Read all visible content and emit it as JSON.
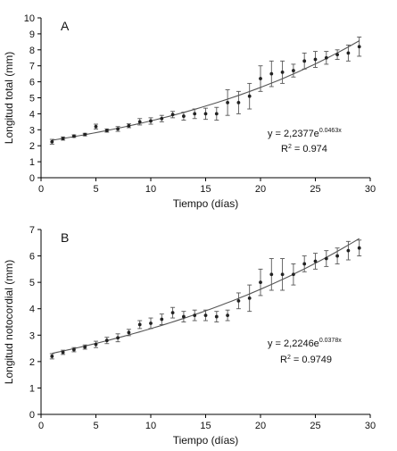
{
  "chart_data": [
    {
      "type": "scatter",
      "panel": "A",
      "xlabel": "Tiempo (días)",
      "ylabel": "Longitud total (mm)",
      "xlim": [
        0,
        30
      ],
      "ylim": [
        0,
        10
      ],
      "xticks": [
        0,
        5,
        10,
        15,
        20,
        25,
        30
      ],
      "yticks": [
        0,
        1,
        2,
        3,
        4,
        5,
        6,
        7,
        8,
        9,
        10
      ],
      "equation": {
        "prefix": "y = 2,2377e",
        "exponent": "0.0463x",
        "r2_label": "R",
        "r2_sup": "2",
        "r2_value": " = 0.974"
      },
      "fit": {
        "a": 2.2377,
        "b": 0.0463
      },
      "points": [
        {
          "x": 1,
          "y": 2.25,
          "err": 0.15
        },
        {
          "x": 2,
          "y": 2.45,
          "err": 0.1
        },
        {
          "x": 3,
          "y": 2.6,
          "err": 0.08
        },
        {
          "x": 4,
          "y": 2.7,
          "err": 0.08
        },
        {
          "x": 5,
          "y": 3.2,
          "err": 0.15
        },
        {
          "x": 6,
          "y": 2.95,
          "err": 0.1
        },
        {
          "x": 7,
          "y": 3.05,
          "err": 0.15
        },
        {
          "x": 8,
          "y": 3.25,
          "err": 0.12
        },
        {
          "x": 9,
          "y": 3.5,
          "err": 0.2
        },
        {
          "x": 10,
          "y": 3.55,
          "err": 0.2
        },
        {
          "x": 11,
          "y": 3.7,
          "err": 0.2
        },
        {
          "x": 12,
          "y": 3.95,
          "err": 0.2
        },
        {
          "x": 13,
          "y": 3.85,
          "err": 0.25
        },
        {
          "x": 14,
          "y": 4.0,
          "err": 0.3
        },
        {
          "x": 15,
          "y": 4.0,
          "err": 0.35
        },
        {
          "x": 16,
          "y": 4.0,
          "err": 0.4
        },
        {
          "x": 17,
          "y": 4.7,
          "err": 0.8
        },
        {
          "x": 18,
          "y": 4.7,
          "err": 0.7
        },
        {
          "x": 19,
          "y": 5.1,
          "err": 0.8
        },
        {
          "x": 20,
          "y": 6.2,
          "err": 0.8
        },
        {
          "x": 21,
          "y": 6.5,
          "err": 0.8
        },
        {
          "x": 22,
          "y": 6.6,
          "err": 0.7
        },
        {
          "x": 23,
          "y": 6.7,
          "err": 0.4
        },
        {
          "x": 24,
          "y": 7.3,
          "err": 0.5
        },
        {
          "x": 25,
          "y": 7.4,
          "err": 0.5
        },
        {
          "x": 26,
          "y": 7.5,
          "err": 0.4
        },
        {
          "x": 27,
          "y": 7.7,
          "err": 0.3
        },
        {
          "x": 28,
          "y": 7.8,
          "err": 0.5
        },
        {
          "x": 29,
          "y": 8.2,
          "err": 0.6
        }
      ]
    },
    {
      "type": "scatter",
      "panel": "B",
      "xlabel": "Tiempo (días)",
      "ylabel": "Longitud notocordial (mm)",
      "xlim": [
        0,
        30
      ],
      "ylim": [
        0,
        7
      ],
      "xticks": [
        0,
        5,
        10,
        15,
        20,
        25,
        30
      ],
      "yticks": [
        0,
        1,
        2,
        3,
        4,
        5,
        6,
        7
      ],
      "equation": {
        "prefix": "y = 2,2246e",
        "exponent": "0.0378x",
        "r2_label": "R",
        "r2_sup": "2",
        "r2_value": " = 0.9749"
      },
      "fit": {
        "a": 2.2246,
        "b": 0.0378
      },
      "points": [
        {
          "x": 1,
          "y": 2.2,
          "err": 0.1
        },
        {
          "x": 2,
          "y": 2.35,
          "err": 0.08
        },
        {
          "x": 3,
          "y": 2.45,
          "err": 0.08
        },
        {
          "x": 4,
          "y": 2.55,
          "err": 0.08
        },
        {
          "x": 5,
          "y": 2.65,
          "err": 0.12
        },
        {
          "x": 6,
          "y": 2.8,
          "err": 0.12
        },
        {
          "x": 7,
          "y": 2.9,
          "err": 0.15
        },
        {
          "x": 8,
          "y": 3.1,
          "err": 0.12
        },
        {
          "x": 9,
          "y": 3.4,
          "err": 0.15
        },
        {
          "x": 10,
          "y": 3.45,
          "err": 0.2
        },
        {
          "x": 11,
          "y": 3.6,
          "err": 0.2
        },
        {
          "x": 12,
          "y": 3.85,
          "err": 0.2
        },
        {
          "x": 13,
          "y": 3.7,
          "err": 0.2
        },
        {
          "x": 14,
          "y": 3.75,
          "err": 0.2
        },
        {
          "x": 15,
          "y": 3.75,
          "err": 0.2
        },
        {
          "x": 16,
          "y": 3.7,
          "err": 0.2
        },
        {
          "x": 17,
          "y": 3.75,
          "err": 0.2
        },
        {
          "x": 18,
          "y": 4.3,
          "err": 0.3
        },
        {
          "x": 19,
          "y": 4.4,
          "err": 0.5
        },
        {
          "x": 20,
          "y": 5.0,
          "err": 0.5
        },
        {
          "x": 21,
          "y": 5.3,
          "err": 0.6
        },
        {
          "x": 22,
          "y": 5.3,
          "err": 0.6
        },
        {
          "x": 23,
          "y": 5.3,
          "err": 0.4
        },
        {
          "x": 24,
          "y": 5.7,
          "err": 0.3
        },
        {
          "x": 25,
          "y": 5.8,
          "err": 0.3
        },
        {
          "x": 26,
          "y": 5.9,
          "err": 0.3
        },
        {
          "x": 27,
          "y": 6.0,
          "err": 0.3
        },
        {
          "x": 28,
          "y": 6.2,
          "err": 0.35
        },
        {
          "x": 29,
          "y": 6.3,
          "err": 0.3
        }
      ]
    }
  ]
}
